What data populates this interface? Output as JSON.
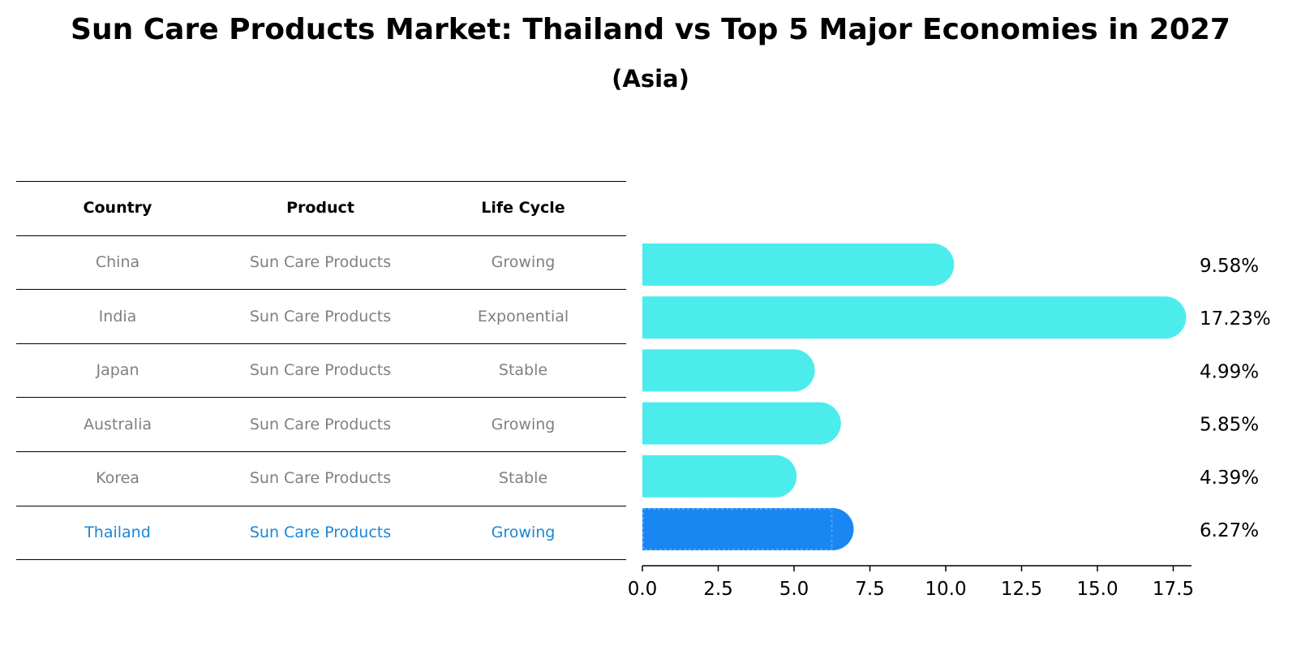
{
  "title": "Sun Care Products Market: Thailand vs Top 5 Major Economies in 2027",
  "subtitle": "(Asia)",
  "colors": {
    "bar": "#4DECEC",
    "highlight": "#1A86F2",
    "text_muted": "#808080",
    "text_highlight": "#1A86D6"
  },
  "table": {
    "headers": [
      "Country",
      "Product",
      "Life Cycle"
    ],
    "rows": [
      {
        "country": "China",
        "product": "Sun Care Products",
        "life_cycle": "Growing"
      },
      {
        "country": "India",
        "product": "Sun Care Products",
        "life_cycle": "Exponential"
      },
      {
        "country": "Japan",
        "product": "Sun Care Products",
        "life_cycle": "Stable"
      },
      {
        "country": "Australia",
        "product": "Sun Care Products",
        "life_cycle": "Growing"
      },
      {
        "country": "Korea",
        "product": "Sun Care Products",
        "life_cycle": "Stable"
      },
      {
        "country": "Thailand",
        "product": "Sun Care Products",
        "life_cycle": "Growing",
        "highlight": true
      }
    ]
  },
  "chart_data": {
    "type": "bar",
    "orientation": "horizontal",
    "categories": [
      "China",
      "India",
      "Japan",
      "Australia",
      "Korea",
      "Thailand"
    ],
    "values": [
      9.58,
      17.23,
      4.99,
      5.85,
      4.39,
      6.27
    ],
    "value_labels": [
      "9.58%",
      "17.23%",
      "4.99%",
      "5.85%",
      "4.39%",
      "6.27%"
    ],
    "highlight_category": "Thailand",
    "xlim": [
      0,
      18.1
    ],
    "xticks": [
      0.0,
      2.5,
      5.0,
      7.5,
      10.0,
      12.5,
      15.0,
      17.5
    ],
    "xtick_labels": [
      "0.0",
      "2.5",
      "5.0",
      "7.5",
      "10.0",
      "12.5",
      "15.0",
      "17.5"
    ],
    "xlabel": "",
    "ylabel": "",
    "grid": false
  }
}
